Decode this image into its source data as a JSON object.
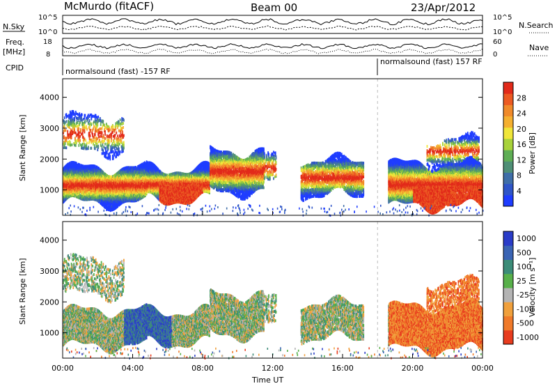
{
  "header": {
    "station": "McMurdo (fitACF)",
    "beam": "Beam 00",
    "date": "23/Apr/2012"
  },
  "summary": {
    "left_labels": {
      "nsky": "N.Sky",
      "freq": "Freq.",
      "freq_unit": "[MHz]",
      "cpid": "CPID"
    },
    "right_labels": {
      "nsearch": "N.Search",
      "nave": "Nave"
    },
    "noise_left_ticks": [
      "10^5",
      "10^0"
    ],
    "noise_right_ticks": [
      "10^5",
      "10^0"
    ],
    "freq_ticks": [
      "18",
      "8"
    ],
    "nave_ticks": [
      "60",
      "0"
    ],
    "cpid_segments": [
      {
        "label": "normalsound (fast) -157 RF",
        "start_hour": 0.0
      },
      {
        "label": "normalsound (fast) 157 RF",
        "start_hour": 18.0
      }
    ]
  },
  "chart_data": [
    {
      "type": "heatmap",
      "name": "power",
      "ylabel": "Slant Range [km]",
      "ylim": [
        180,
        4600
      ],
      "yticks": [
        1000,
        2000,
        3000,
        4000
      ],
      "xlim": [
        0,
        24
      ],
      "colorbar": {
        "label": "Power [dB]",
        "range": [
          0,
          32
        ],
        "ticks": [
          "4",
          "8",
          "12",
          "16",
          "20",
          "24",
          "28"
        ],
        "colors": [
          "#1e3cff",
          "#2f55c8",
          "#3f6ea8",
          "#4f8f76",
          "#5fae55",
          "#a8d23a",
          "#f0e63a",
          "#f5b030",
          "#f08a2a",
          "#ec5a22",
          "#e22a1a"
        ]
      }
    },
    {
      "type": "heatmap",
      "name": "velocity",
      "xlabel": "Time UT",
      "ylabel": "Slant Range [km]",
      "ylim": [
        180,
        4600
      ],
      "yticks": [
        1000,
        2000,
        3000,
        4000
      ],
      "xlim": [
        0,
        24
      ],
      "xticks": [
        "00:00",
        "04:00",
        "08:00",
        "12:00",
        "16:00",
        "20:00",
        "00:00"
      ],
      "colorbar": {
        "label": "Velocity [m s⁻¹]",
        "ticks": [
          "1000",
          "500",
          "100",
          "25",
          "-25",
          "-100",
          "-500",
          "-1000"
        ],
        "colors": [
          "#2a3cc8",
          "#3a64b4",
          "#3c8c78",
          "#58b04a",
          "#b4b4b4",
          "#f0a03c",
          "#f07a2a",
          "#e83c1e"
        ]
      }
    }
  ]
}
